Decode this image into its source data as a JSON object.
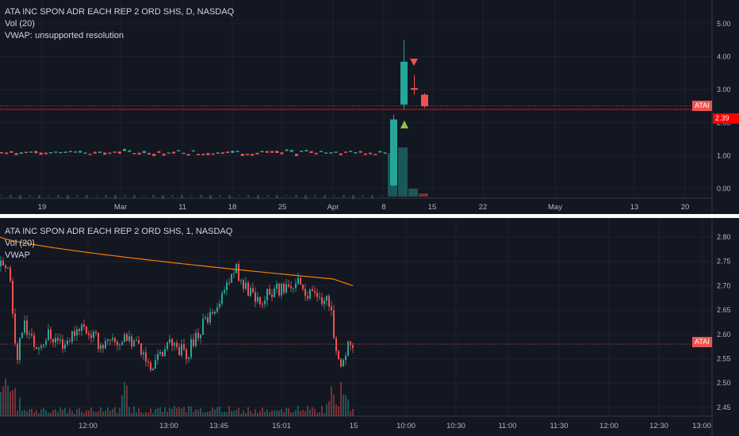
{
  "top": {
    "symbol_line": "ATA INC SPON ADR EACH REP 2 ORD SHS, D, NASDAQ",
    "vol_line": "Vol (20)",
    "vwap_line": "VWAP: unsupported resolution",
    "price_labels": [
      "5.00",
      "4.00",
      "3.00",
      "2.00",
      "1.00",
      "0.00"
    ],
    "price_values": [
      5,
      4,
      3,
      2,
      1,
      0
    ],
    "time_labels": [
      "19",
      "Mar",
      "11",
      "18",
      "25",
      "Apr",
      "8",
      "15",
      "22",
      "May",
      "13",
      "20"
    ],
    "badge_symbol": "ATAI",
    "badge_price": "2.39"
  },
  "bottom": {
    "symbol_line": "ATA INC SPON ADR EACH REP 2 ORD SHS, 1, NASDAQ",
    "vol_line": "Vol (20)",
    "vwap_line": "VWAP",
    "price_labels": [
      "2.80",
      "2.75",
      "2.70",
      "2.65",
      "2.60",
      "2.55",
      "2.50",
      "2.45"
    ],
    "price_values": [
      2.8,
      2.75,
      2.7,
      2.65,
      2.6,
      2.55,
      2.5,
      2.45
    ],
    "time_labels": [
      "12:00",
      "13:00",
      "13:45",
      "15:01",
      "15",
      "10:00",
      "10:30",
      "11:00",
      "11:30",
      "12:00",
      "12:30",
      "13:00"
    ],
    "badge_symbol": "ATAI"
  },
  "colors": {
    "background": "#131722",
    "up": "#26a69a",
    "down": "#ef5350",
    "vwap": "#f57c00",
    "price_line": "#ff0000",
    "badge": "#ef5350",
    "signal_up": "#8bc34a",
    "signal_down": "#ef5350"
  }
}
